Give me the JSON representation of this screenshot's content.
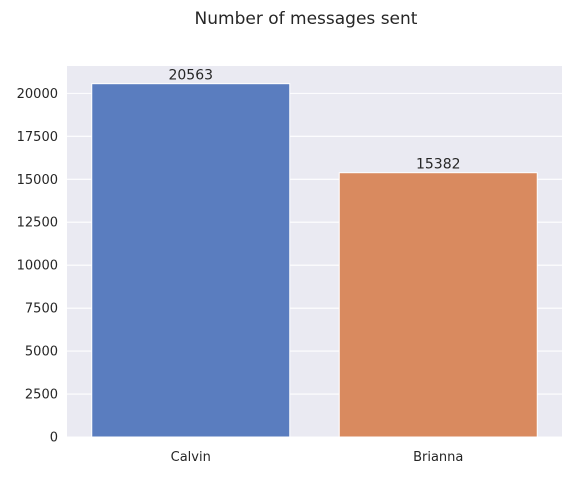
{
  "chart_data": {
    "type": "bar",
    "title": "Number of messages sent",
    "xlabel": "",
    "ylabel": "",
    "categories": [
      "Calvin",
      "Brianna"
    ],
    "values": [
      20563,
      15382
    ],
    "data_labels": [
      "20563",
      "15382"
    ],
    "ylim": [
      0,
      21593
    ],
    "yticks": [
      0,
      2500,
      5000,
      7500,
      10000,
      12500,
      15000,
      17500,
      20000
    ],
    "ytick_labels": [
      "0",
      "2500",
      "5000",
      "7500",
      "10000",
      "12500",
      "15000",
      "17500",
      "20000"
    ],
    "grid": true,
    "legend": "none",
    "colors": {
      "background": "#eaeaf2",
      "grid": "#ffffff",
      "bars": [
        "#5a7dbf",
        "#d98a5f"
      ]
    }
  }
}
